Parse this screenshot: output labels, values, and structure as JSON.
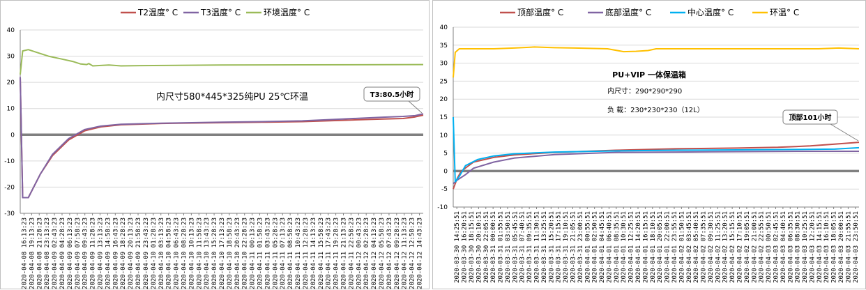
{
  "chart_data": [
    {
      "type": "line",
      "title": "",
      "ylim": [
        -30,
        40
      ],
      "yticks": [
        -30,
        -20,
        -10,
        0,
        10,
        20,
        30,
        40
      ],
      "legend_position": "top",
      "grid": true,
      "x_labels": [
        "2020-04-08 16:13:23",
        "2020-04-08 19:13:23",
        "2020-04-08 21:28:23",
        "2020-04-08 23:13:23",
        "2020-04-09 02:43:23",
        "2020-04-09 04:28:23",
        "2020-04-09 06:13:23",
        "2020-04-09 07:58:23",
        "2020-04-09 09:43:23",
        "2020-04-09 11:28:23",
        "2020-04-09 13:13:23",
        "2020-04-09 14:58:23",
        "2020-04-09 16:43:23",
        "2020-04-09 18:28:23",
        "2020-04-09 20:13:23",
        "2020-04-09 21:58:23",
        "2020-04-09 23:43:23",
        "2020-04-10 01:28:23",
        "2020-04-10 03:13:23",
        "2020-04-10 04:58:23",
        "2020-04-10 06:43:23",
        "2020-04-10 08:28:23",
        "2020-04-10 10:13:23",
        "2020-04-10 11:58:23",
        "2020-04-10 13:43:23",
        "2020-04-10 15:28:23",
        "2020-04-10 17:13:23",
        "2020-04-10 18:58:23",
        "2020-04-10 20:43:23",
        "2020-04-10 22:28:23",
        "2020-04-11 00:13:23",
        "2020-04-11 01:58:23",
        "2020-04-11 03:43:23",
        "2020-04-11 05:28:23",
        "2020-04-11 07:13:23",
        "2020-04-11 08:58:23",
        "2020-04-11 10:43:23",
        "2020-04-11 12:28:23",
        "2020-04-11 14:13:23",
        "2020-04-11 15:58:23",
        "2020-04-11 17:43:23",
        "2020-04-11 19:28:23",
        "2020-04-11 21:13:23",
        "2020-04-11 22:58:23",
        "2020-04-12 00:43:23",
        "2020-04-12 02:28:23",
        "2020-04-12 04:13:23",
        "2020-04-12 05:58:23",
        "2020-04-12 07:43:23",
        "2020-04-12 09:28:23",
        "2020-04-12 11:13:23",
        "2020-04-12 12:58:23",
        "2020-04-12 14:43:23"
      ],
      "series": [
        {
          "name": "T2温度° C",
          "color": "#c0504d",
          "points": [
            [
              0,
              22
            ],
            [
              0.006,
              -24
            ],
            [
              0.02,
              -24
            ],
            [
              0.05,
              -15
            ],
            [
              0.08,
              -8
            ],
            [
              0.12,
              -2
            ],
            [
              0.16,
              1.5
            ],
            [
              0.2,
              3
            ],
            [
              0.25,
              3.8
            ],
            [
              0.35,
              4.3
            ],
            [
              0.5,
              4.6
            ],
            [
              0.6,
              4.8
            ],
            [
              0.7,
              5
            ],
            [
              0.8,
              5.5
            ],
            [
              0.9,
              6
            ],
            [
              0.95,
              6.2
            ],
            [
              0.98,
              6.8
            ],
            [
              1,
              7.5
            ]
          ]
        },
        {
          "name": "T3温度° C",
          "color": "#8064a2",
          "points": [
            [
              0,
              22
            ],
            [
              0.006,
              -24
            ],
            [
              0.02,
              -24
            ],
            [
              0.05,
              -15
            ],
            [
              0.08,
              -7.5
            ],
            [
              0.12,
              -1.5
            ],
            [
              0.16,
              2
            ],
            [
              0.2,
              3.3
            ],
            [
              0.25,
              4
            ],
            [
              0.35,
              4.4
            ],
            [
              0.5,
              4.8
            ],
            [
              0.6,
              5
            ],
            [
              0.7,
              5.3
            ],
            [
              0.8,
              6
            ],
            [
              0.9,
              6.7
            ],
            [
              0.95,
              7
            ],
            [
              0.98,
              7.3
            ],
            [
              1,
              8
            ]
          ]
        },
        {
          "name": "环境温度° C",
          "color": "#9bbb59",
          "points": [
            [
              0,
              23
            ],
            [
              0.006,
              32
            ],
            [
              0.02,
              32.5
            ],
            [
              0.04,
              31.5
            ],
            [
              0.07,
              30
            ],
            [
              0.1,
              29
            ],
            [
              0.13,
              28
            ],
            [
              0.15,
              27
            ],
            [
              0.165,
              26.8
            ],
            [
              0.17,
              27.2
            ],
            [
              0.18,
              26.3
            ],
            [
              0.22,
              26.6
            ],
            [
              0.25,
              26.3
            ],
            [
              0.3,
              26.4
            ],
            [
              0.5,
              26.6
            ],
            [
              0.7,
              26.7
            ],
            [
              1,
              26.8
            ]
          ]
        }
      ],
      "annotations": {
        "text": "内尺寸580*445*325纯PU   25℃环温",
        "callout": "T3:80.5小时"
      }
    },
    {
      "type": "line",
      "title": "",
      "ylim": [
        -10,
        40
      ],
      "yticks": [
        -10,
        -5,
        0,
        5,
        10,
        15,
        20,
        25,
        30,
        35,
        40
      ],
      "legend_position": "top",
      "grid": true,
      "x_labels": [
        "2020-03-30 14:25:51",
        "2020-03-30 16:20:51",
        "2020-03-30 18:15:51",
        "2020-03-30 20:10:51",
        "2020-03-30 22:05:51",
        "2020-03-31 00:00:51",
        "2020-03-31 01:55:51",
        "2020-03-31 03:50:51",
        "2020-03-31 05:45:51",
        "2020-03-31 07:40:51",
        "2020-03-31 09:35:51",
        "2020-03-31 11:30:51",
        "2020-03-31 13:25:51",
        "2020-03-31 15:20:51",
        "2020-03-31 17:15:51",
        "2020-03-31 19:10:51",
        "2020-03-31 21:05:51",
        "2020-03-31 23:00:51",
        "2020-04-01 00:55:51",
        "2020-04-01 02:50:51",
        "2020-04-01 04:45:51",
        "2020-04-01 06:40:51",
        "2020-04-01 08:35:51",
        "2020-04-01 10:30:51",
        "2020-04-01 12:25:51",
        "2020-04-01 14:20:51",
        "2020-04-01 16:15:51",
        "2020-04-01 18:10:51",
        "2020-04-01 20:05:51",
        "2020-04-01 22:00:51",
        "2020-04-01 23:55:51",
        "2020-04-02 01:50:51",
        "2020-04-02 03:45:51",
        "2020-04-02 05:40:51",
        "2020-04-02 07:35:51",
        "2020-04-02 09:30:51",
        "2020-04-02 11:25:51",
        "2020-04-02 13:20:51",
        "2020-04-02 15:15:51",
        "2020-04-02 17:10:51",
        "2020-04-02 19:05:51",
        "2020-04-02 21:00:51",
        "2020-04-02 22:55:51",
        "2020-04-03 00:50:51",
        "2020-04-03 02:45:51",
        "2020-04-03 04:40:51",
        "2020-04-03 06:35:51",
        "2020-04-03 08:30:51",
        "2020-04-03 10:25:51",
        "2020-04-03 12:20:51",
        "2020-04-03 14:15:51",
        "2020-04-03 16:10:51",
        "2020-04-03 18:05:51",
        "2020-04-03 20:00:51",
        "2020-04-03 21:55:51",
        "2020-04-03 23:50:51"
      ],
      "series": [
        {
          "name": "顶部温度° C",
          "color": "#c0504d",
          "points": [
            [
              0,
              -5
            ],
            [
              0.01,
              -2
            ],
            [
              0.02,
              0
            ],
            [
              0.05,
              2.5
            ],
            [
              0.1,
              3.8
            ],
            [
              0.15,
              4.5
            ],
            [
              0.25,
              5.2
            ],
            [
              0.4,
              5.8
            ],
            [
              0.55,
              6.2
            ],
            [
              0.7,
              6.4
            ],
            [
              0.8,
              6.6
            ],
            [
              0.88,
              7
            ],
            [
              0.94,
              7.5
            ],
            [
              1,
              8
            ]
          ]
        },
        {
          "name": "底部温度° C",
          "color": "#8064a2",
          "points": [
            [
              0,
              -3.5
            ],
            [
              0.01,
              -2.5
            ],
            [
              0.03,
              -1
            ],
            [
              0.05,
              0.8
            ],
            [
              0.1,
              2.5
            ],
            [
              0.15,
              3.6
            ],
            [
              0.25,
              4.6
            ],
            [
              0.4,
              5.2
            ],
            [
              0.55,
              5.3
            ],
            [
              0.7,
              5.4
            ],
            [
              0.85,
              5.5
            ],
            [
              1,
              5.5
            ]
          ]
        },
        {
          "name": "中心温度° C",
          "color": "#00b0f0",
          "points": [
            [
              0,
              15
            ],
            [
              0.005,
              -3
            ],
            [
              0.015,
              -1.5
            ],
            [
              0.03,
              1.5
            ],
            [
              0.06,
              3.2
            ],
            [
              0.1,
              4.2
            ],
            [
              0.15,
              4.8
            ],
            [
              0.25,
              5.3
            ],
            [
              0.4,
              5.6
            ],
            [
              0.55,
              5.8
            ],
            [
              0.7,
              5.9
            ],
            [
              0.85,
              6
            ],
            [
              0.94,
              6.1
            ],
            [
              1,
              6.5
            ]
          ]
        },
        {
          "name": "环温° C",
          "color": "#ffc000",
          "points": [
            [
              0,
              26
            ],
            [
              0.005,
              33
            ],
            [
              0.015,
              34
            ],
            [
              0.05,
              34
            ],
            [
              0.1,
              34
            ],
            [
              0.15,
              34.2
            ],
            [
              0.2,
              34.5
            ],
            [
              0.25,
              34.3
            ],
            [
              0.3,
              34.2
            ],
            [
              0.38,
              34
            ],
            [
              0.42,
              33.2
            ],
            [
              0.45,
              33.3
            ],
            [
              0.48,
              33.5
            ],
            [
              0.5,
              34
            ],
            [
              0.6,
              34
            ],
            [
              0.7,
              34
            ],
            [
              0.8,
              34
            ],
            [
              0.9,
              34
            ],
            [
              0.95,
              34.2
            ],
            [
              1,
              34
            ]
          ]
        }
      ],
      "annotations": {
        "title": "PU+VIP 一体保温箱",
        "line1": "内尺寸：290*290*290",
        "line2": "负  载：230*230*230（12L）",
        "callout": "顶部101小时"
      }
    }
  ]
}
